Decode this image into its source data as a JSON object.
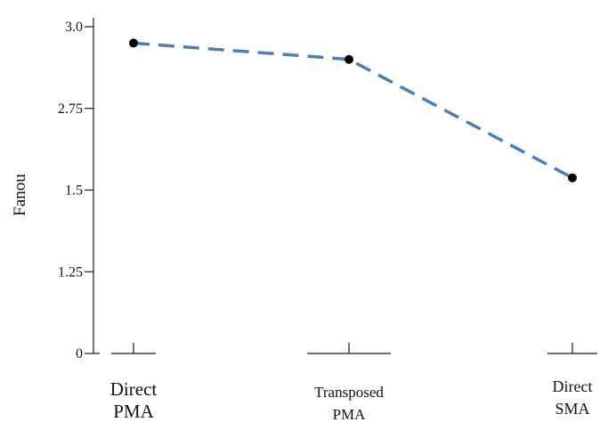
{
  "chart_data": {
    "type": "line",
    "categories": [
      [
        "Direct",
        "PMA"
      ],
      [
        "Transposed",
        "PMA"
      ],
      [
        "Direct",
        "SMA"
      ]
    ],
    "ytick_labels": [
      "0",
      "1.25",
      "1.5",
      "2.75",
      "3.0"
    ],
    "ytick_values": [
      0,
      1,
      2,
      3,
      4
    ],
    "values": [
      3.8,
      3.6,
      2.15
    ],
    "ylabel": "Fanou",
    "ylim": [
      0,
      4
    ],
    "grid": false,
    "legend": "none",
    "colors": {
      "line": "#4a7fb8",
      "marker": "#000000"
    }
  }
}
